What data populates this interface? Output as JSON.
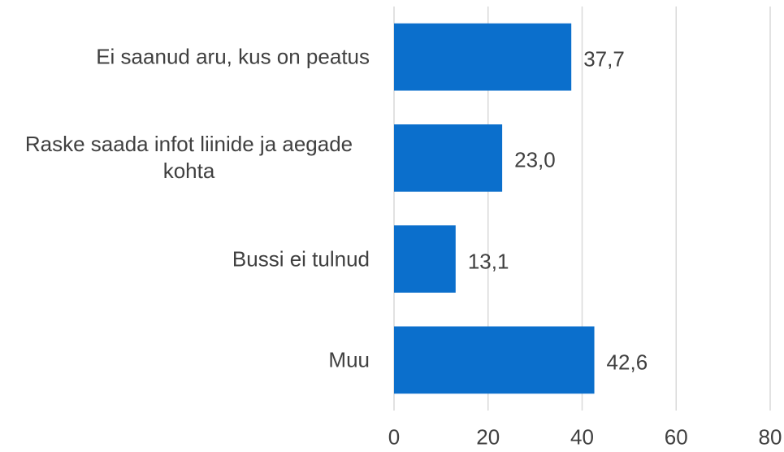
{
  "chart_data": {
    "type": "barh",
    "categories": [
      "Ei saanud aru, kus on peatus",
      "Raske saada infot liinide ja aegade kohta",
      "Bussi ei tulnud",
      "Muu"
    ],
    "values": [
      37.7,
      23.0,
      13.1,
      42.6
    ],
    "value_labels": [
      "37,7",
      "23,0",
      "13,1",
      "42,6"
    ],
    "color": "#0b6fcc",
    "xlim": [
      0,
      80
    ],
    "xticks": [
      0,
      20,
      40,
      60,
      80
    ],
    "grid": true
  }
}
